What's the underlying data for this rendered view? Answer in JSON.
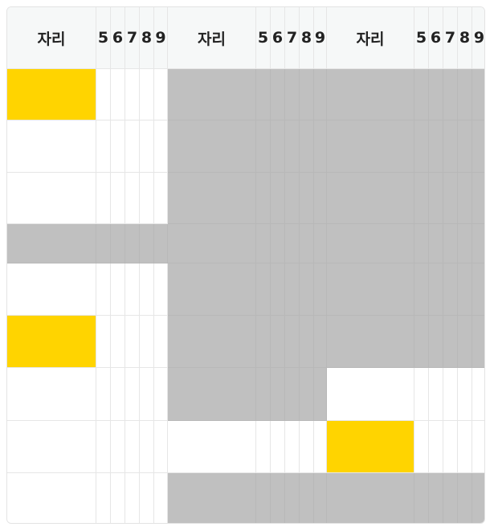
{
  "columns": [
    {
      "label": "자리",
      "kind": "wide"
    },
    {
      "label": "5",
      "kind": "digit"
    },
    {
      "label": "6",
      "kind": "digit"
    },
    {
      "label": "7",
      "kind": "digit"
    },
    {
      "label": "8",
      "kind": "digit"
    },
    {
      "label": "9",
      "kind": "digit"
    },
    {
      "label": "자리",
      "kind": "wide"
    },
    {
      "label": "5",
      "kind": "digit"
    },
    {
      "label": "6",
      "kind": "digit"
    },
    {
      "label": "7",
      "kind": "digit"
    },
    {
      "label": "8",
      "kind": "digit"
    },
    {
      "label": "9",
      "kind": "digit"
    },
    {
      "label": "자리",
      "kind": "wide"
    },
    {
      "label": "5",
      "kind": "digit"
    },
    {
      "label": "6",
      "kind": "digit"
    },
    {
      "label": "7",
      "kind": "digit"
    },
    {
      "label": "8",
      "kind": "digit"
    },
    {
      "label": "9",
      "kind": "digit"
    }
  ],
  "rows": [
    [
      "yellow",
      "white",
      "white",
      "white",
      "white",
      "white",
      "gray",
      "gray",
      "gray",
      "gray",
      "gray",
      "gray",
      "gray",
      "gray",
      "gray",
      "gray",
      "gray",
      "gray"
    ],
    [
      "white",
      "white",
      "white",
      "white",
      "white",
      "white",
      "gray",
      "gray",
      "gray",
      "gray",
      "gray",
      "gray",
      "gray",
      "gray",
      "gray",
      "gray",
      "gray",
      "gray"
    ],
    [
      "white",
      "white",
      "white",
      "white",
      "white",
      "white",
      "gray",
      "gray",
      "gray",
      "gray",
      "gray",
      "gray",
      "gray",
      "gray",
      "gray",
      "gray",
      "gray",
      "gray"
    ],
    [
      "gray",
      "gray",
      "gray",
      "gray",
      "gray",
      "gray",
      "gray",
      "gray",
      "gray",
      "gray",
      "gray",
      "gray",
      "gray",
      "gray",
      "gray",
      "gray",
      "gray",
      "gray"
    ],
    [
      "white",
      "white",
      "white",
      "white",
      "white",
      "white",
      "gray",
      "gray",
      "gray",
      "gray",
      "gray",
      "gray",
      "gray",
      "gray",
      "gray",
      "gray",
      "gray",
      "gray"
    ],
    [
      "yellow",
      "white",
      "white",
      "white",
      "white",
      "white",
      "gray",
      "gray",
      "gray",
      "gray",
      "gray",
      "gray",
      "gray",
      "gray",
      "gray",
      "gray",
      "gray",
      "gray"
    ],
    [
      "white",
      "white",
      "white",
      "white",
      "white",
      "white",
      "gray",
      "gray",
      "gray",
      "gray",
      "gray",
      "gray",
      "white",
      "white",
      "white",
      "white",
      "white",
      "white"
    ],
    [
      "white",
      "white",
      "white",
      "white",
      "white",
      "white",
      "white",
      "white",
      "white",
      "white",
      "white",
      "white",
      "yellow",
      "white",
      "white",
      "white",
      "white",
      "white"
    ],
    [
      "white",
      "white",
      "white",
      "white",
      "white",
      "white",
      "gray",
      "gray",
      "gray",
      "gray",
      "gray",
      "gray",
      "gray",
      "gray",
      "gray",
      "gray",
      "gray",
      "gray"
    ]
  ],
  "colors": {
    "gray": "#c0c0c0",
    "yellow": "#ffd400",
    "white": "#ffffff",
    "header": "#f6f8f8"
  }
}
